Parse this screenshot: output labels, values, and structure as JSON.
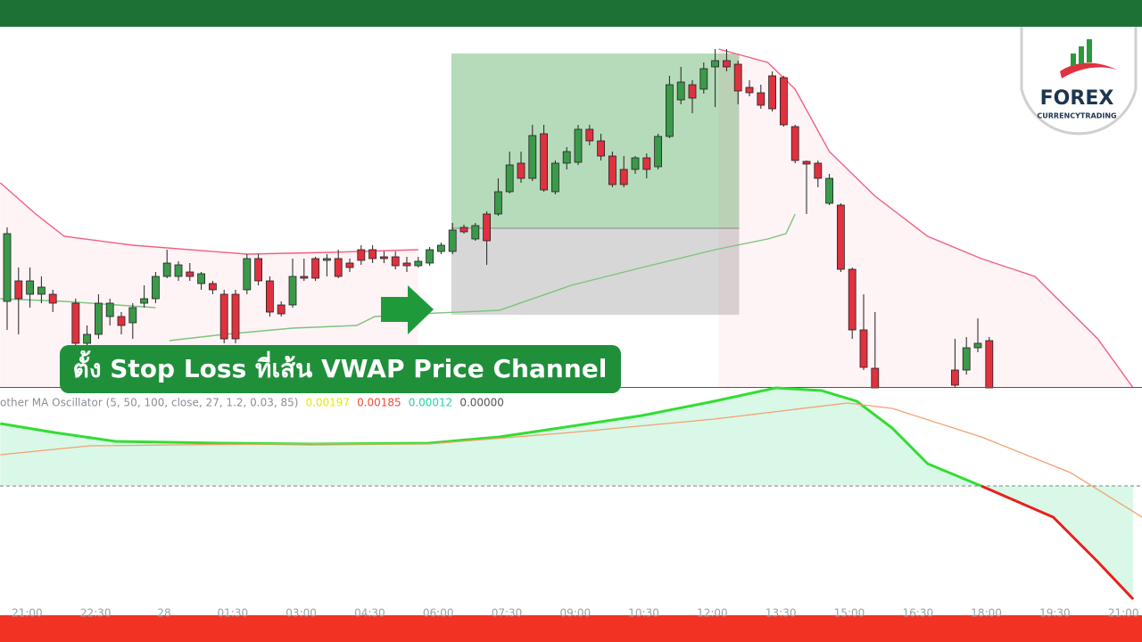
{
  "chart_data": {
    "type": "candlestick",
    "banner": "ตั้ง Stop Loss ที่เส้น VWAP Price Channel",
    "logo": {
      "title": "FOREX",
      "subtitle": "CURRENCYTRADING"
    },
    "up_color": "#3b9a4a",
    "down_color": "#e0313f",
    "xlim": [
      -0.625,
      99.375
    ],
    "ylim": [
      0,
      405
    ],
    "xticks": [
      {
        "value": 1.75,
        "label": "21:00"
      },
      {
        "value": 7.75,
        "label": "22:30"
      },
      {
        "value": 13.75,
        "label": "28"
      },
      {
        "value": 19.75,
        "label": "01:30"
      },
      {
        "value": 25.75,
        "label": "03:00"
      },
      {
        "value": 31.75,
        "label": "04:30"
      },
      {
        "value": 37.75,
        "label": "06:00"
      },
      {
        "value": 43.75,
        "label": "07:30"
      },
      {
        "value": 49.75,
        "label": "09:00"
      },
      {
        "value": 55.75,
        "label": "10:30"
      },
      {
        "value": 61.75,
        "label": "12:00"
      },
      {
        "value": 67.75,
        "label": "13:30"
      },
      {
        "value": 73.75,
        "label": "15:00"
      },
      {
        "value": 79.75,
        "label": "16:30"
      },
      {
        "value": 85.75,
        "label": "18:00"
      },
      {
        "value": 91.75,
        "label": "19:30"
      },
      {
        "value": 97.75,
        "label": "21:00"
      }
    ],
    "x": [
      0,
      1,
      2,
      3,
      4,
      6,
      7,
      8,
      9,
      10,
      11,
      12,
      13,
      14,
      15,
      16,
      17,
      18,
      19,
      20,
      21,
      22,
      23,
      24,
      25,
      26,
      27,
      28,
      29,
      30,
      31,
      32,
      33,
      34,
      35,
      36,
      37,
      38,
      39,
      40,
      41,
      42,
      43,
      44,
      45,
      46,
      47,
      48,
      49,
      50,
      51,
      52,
      53,
      54,
      55,
      56,
      57,
      58,
      59,
      60,
      61,
      62,
      63,
      64,
      65,
      66,
      67,
      68,
      69,
      70,
      71,
      72,
      73,
      74,
      75,
      76,
      83,
      84,
      85,
      86
    ],
    "open": [
      97,
      120,
      105,
      105,
      105,
      95,
      50,
      60,
      80,
      80,
      73,
      95,
      100,
      125,
      125,
      130,
      117,
      117,
      105,
      105,
      110,
      145,
      120,
      93,
      93,
      125,
      145,
      143,
      145,
      140,
      155,
      155,
      147,
      147,
      140,
      137,
      140,
      153,
      153,
      180,
      167,
      195,
      195,
      220,
      252,
      235,
      285,
      220,
      252,
      253,
      290,
      277,
      260,
      245,
      245,
      258,
      248,
      282,
      323,
      340,
      335,
      360,
      367,
      363,
      337,
      331,
      350,
      348,
      293,
      254,
      252,
      207,
      205,
      133,
      65,
      22,
      20,
      20,
      45,
      53
    ],
    "high": [
      180,
      135,
      135,
      125,
      110,
      100,
      70,
      105,
      100,
      85,
      95,
      115,
      130,
      155,
      142,
      140,
      130,
      120,
      110,
      110,
      150,
      150,
      125,
      97,
      145,
      145,
      147,
      150,
      155,
      145,
      160,
      160,
      153,
      153,
      147,
      147,
      158,
      163,
      185,
      183,
      185,
      198,
      235,
      265,
      265,
      295,
      295,
      255,
      270,
      295,
      295,
      285,
      265,
      260,
      260,
      263,
      285,
      350,
      360,
      345,
      365,
      380,
      380,
      367,
      345,
      340,
      355,
      350,
      295,
      255,
      255,
      240,
      207,
      135,
      105,
      85,
      55,
      57,
      78,
      57
    ],
    "low": [
      65,
      60,
      90,
      95,
      85,
      40,
      40,
      55,
      70,
      60,
      55,
      90,
      95,
      123,
      120,
      120,
      110,
      105,
      50,
      50,
      105,
      115,
      80,
      80,
      90,
      120,
      120,
      125,
      123,
      130,
      138,
      140,
      140,
      133,
      130,
      135,
      137,
      150,
      150,
      173,
      165,
      138,
      193,
      218,
      230,
      232,
      220,
      217,
      245,
      250,
      272,
      255,
      225,
      225,
      240,
      235,
      245,
      280,
      318,
      308,
      330,
      315,
      355,
      318,
      327,
      313,
      310,
      293,
      252,
      195,
      225,
      205,
      130,
      55,
      20,
      0,
      0,
      15,
      40,
      0
    ],
    "close": [
      173,
      100,
      120,
      113,
      95,
      50,
      60,
      95,
      95,
      70,
      90,
      100,
      125,
      140,
      138,
      125,
      128,
      110,
      55,
      55,
      145,
      120,
      85,
      83,
      125,
      123,
      123,
      145,
      125,
      135,
      143,
      145,
      145,
      137,
      137,
      142,
      155,
      160,
      177,
      175,
      182,
      165,
      220,
      250,
      235,
      283,
      222,
      252,
      265,
      290,
      277,
      260,
      228,
      228,
      258,
      245,
      282,
      340,
      343,
      325,
      358,
      367,
      360,
      333,
      331,
      317,
      313,
      295,
      255,
      251,
      235,
      235,
      133,
      65,
      23,
      0,
      3,
      45,
      50,
      0
    ],
    "lines": [
      {
        "color": "#f06080",
        "x": [
          -0.6,
          2.5,
          5,
          11,
          21,
          28.3,
          36
        ],
        "values": [
          230,
          195,
          170,
          160,
          150,
          152,
          155
        ]
      },
      {
        "color": "#f06080",
        "x": [
          62.3,
          66.6,
          69,
          72,
          76,
          80.6,
          85.3,
          90,
          95.5,
          98.6
        ],
        "values": [
          380,
          365,
          335,
          265,
          215,
          170,
          145,
          125,
          55,
          0
        ]
      },
      {
        "color": "#7cc47f",
        "x": [
          -0.6,
          5,
          13
        ],
        "values": [
          100,
          97,
          90
        ]
      },
      {
        "color": "#7cc47f",
        "x": [
          14.2,
          19,
          25,
          30.6,
          32.2,
          36,
          43.1,
          49.4,
          55.6,
          62,
          66.6,
          68.2,
          69
        ],
        "values": [
          53,
          60,
          67,
          70,
          80,
          83,
          87,
          115,
          135,
          155,
          167,
          173,
          195
        ]
      }
    ],
    "position_tool": {
      "x": [
        38.9,
        64.1
      ],
      "entry": 179,
      "target": 375,
      "stop": 82
    },
    "oscillator": {
      "label": "other MA Oscillator (5, 50, 100, close, 27, 1.2, 0.03, 85)",
      "readouts": [
        {
          "text": "0.00197",
          "color": "#e8e800"
        },
        {
          "text": "0.00185",
          "color": "#f04a3a"
        },
        {
          "text": "0.00012",
          "color": "#22d3a6"
        },
        {
          "text": "0.00000",
          "color": "#555555"
        }
      ],
      "ylim": [
        -127,
        110
      ],
      "fast": {
        "x": [
          -0.6,
          4.1,
          9.5,
          18.9,
          26.7,
          36.9,
          43.1,
          49.4,
          55.6,
          61.9,
          67.3,
          71.3,
          74.4,
          77.5,
          80.6,
          85.3,
          91.6,
          95.5,
          98.6
        ],
        "values": [
          70,
          60,
          50,
          48,
          47,
          48,
          55,
          67,
          79,
          95,
          110,
          107,
          95,
          65,
          25,
          0,
          -35,
          -85,
          -127
        ]
      },
      "slow": {
        "color": "#f4a070",
        "x": [
          -0.6,
          7.2,
          22.8,
          36.9,
          49.4,
          61.9,
          73.6,
          77.5,
          85.3,
          93.1,
          99.4
        ],
        "values": [
          35,
          45,
          47,
          47,
          60,
          75,
          93,
          87,
          55,
          15,
          -35
        ]
      }
    }
  }
}
